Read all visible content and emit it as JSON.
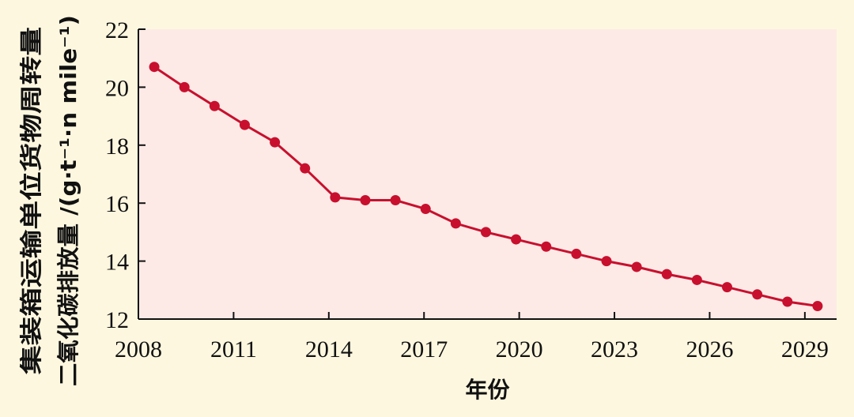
{
  "chart_data": {
    "type": "line",
    "xlabel": "年份",
    "ylabel_line1": "集装箱运输单位货物周转量",
    "ylabel_line2": "二氧化碳排放量 /(g·t⁻¹·n mile⁻¹)",
    "xlim": [
      2008,
      2030
    ],
    "ylim": [
      12,
      22
    ],
    "x_ticks": [
      2008,
      2011,
      2014,
      2017,
      2020,
      2023,
      2026,
      2029
    ],
    "y_ticks": [
      12,
      14,
      16,
      18,
      20,
      22
    ],
    "grid": false,
    "colors": {
      "line": "#c8102e",
      "plot_bg": "#fdeae6",
      "page_bg": "#fdf7df"
    },
    "series": [
      {
        "x": [
          2008.5,
          2009.45,
          2010.4,
          2011.35,
          2012.3,
          2013.25,
          2014.2,
          2015.15,
          2016.1,
          2017.05,
          2018.0,
          2018.95,
          2019.9,
          2020.85,
          2021.8,
          2022.75,
          2023.7,
          2024.65,
          2025.6,
          2026.55,
          2027.5,
          2028.45,
          2029.4
        ],
        "values": [
          20.7,
          20.0,
          19.35,
          18.7,
          18.1,
          17.2,
          16.2,
          16.1,
          16.1,
          15.8,
          15.3,
          15.0,
          14.75,
          14.5,
          14.25,
          14.0,
          13.8,
          13.55,
          13.35,
          13.1,
          12.85,
          12.6,
          12.45
        ]
      }
    ]
  }
}
